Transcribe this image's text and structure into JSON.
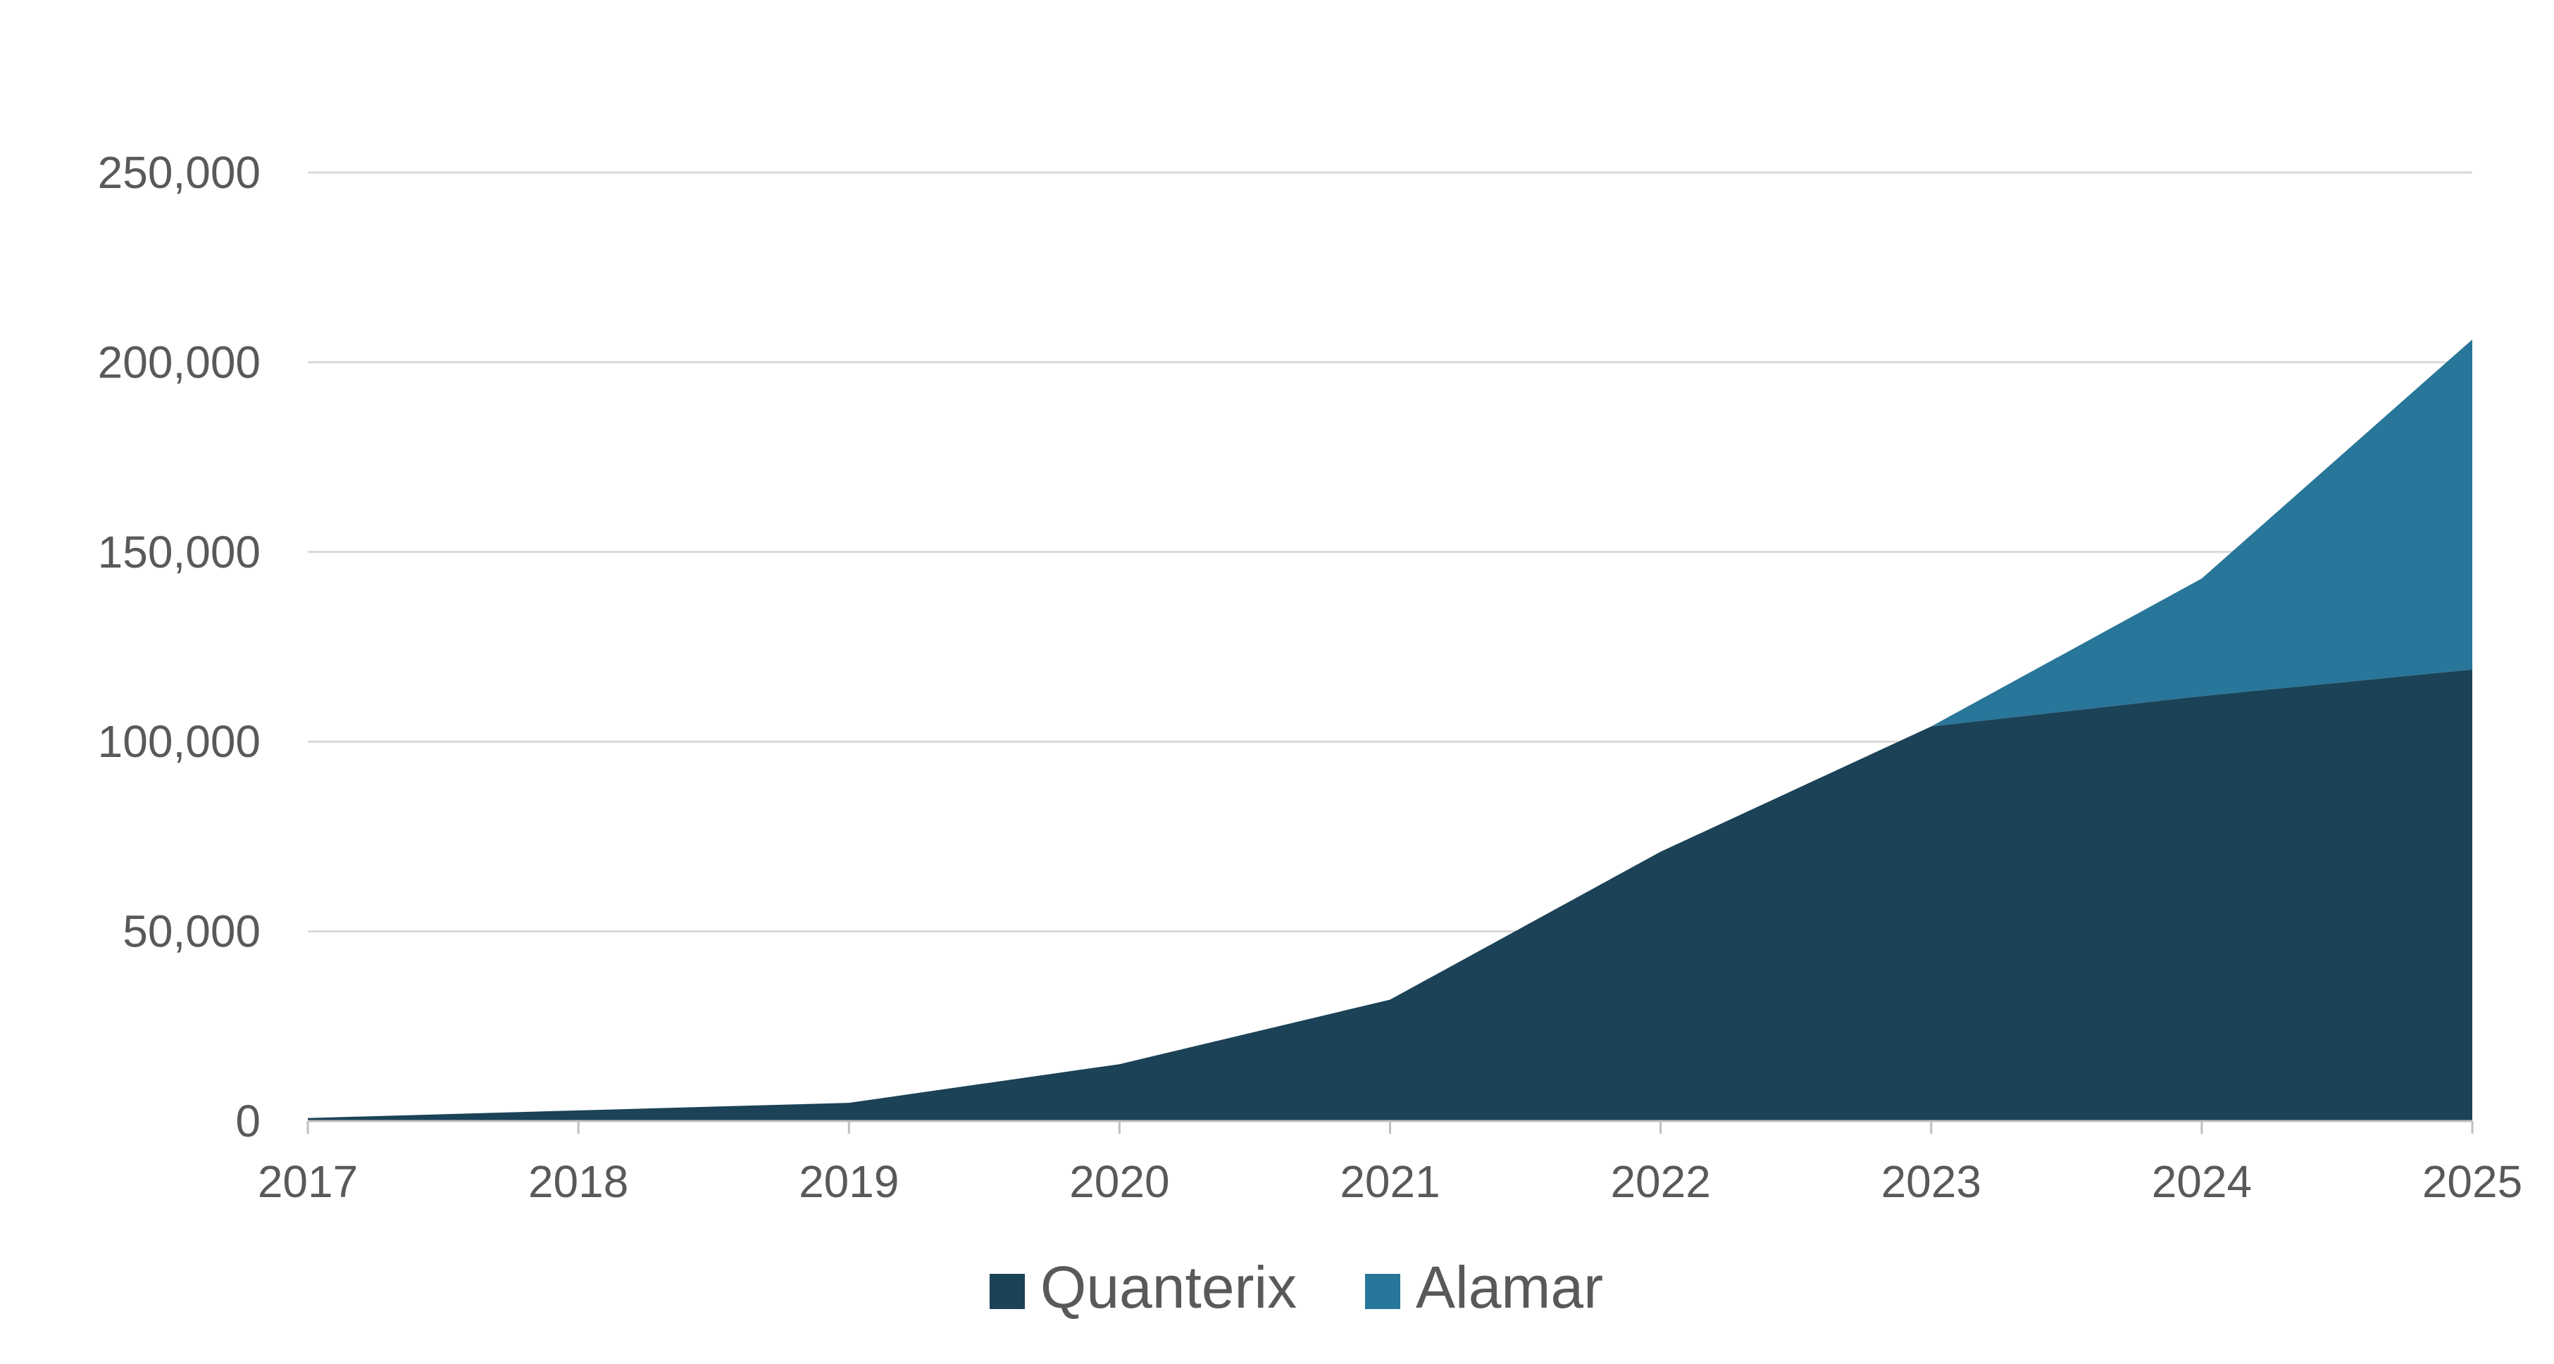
{
  "chart_data": {
    "type": "area",
    "stacked": true,
    "title": "",
    "xlabel": "",
    "ylabel": "",
    "x": [
      "2017",
      "2018",
      "2019",
      "2020",
      "2021",
      "2022",
      "2023",
      "2024",
      "2025"
    ],
    "ylim": [
      0,
      250000
    ],
    "yticks": [
      "0",
      "50,000",
      "100,000",
      "150,000",
      "200,000",
      "250,000"
    ],
    "ytick_values": [
      0,
      50000,
      100000,
      150000,
      200000,
      250000
    ],
    "grid": true,
    "legend": "bottom-center",
    "series": [
      {
        "name": "Quanterix",
        "color": "#1b4257",
        "values": [
          800,
          2800,
          4800,
          15000,
          32000,
          71000,
          104000,
          112000,
          119000
        ]
      },
      {
        "name": "Alamar",
        "color": "#287699",
        "values": [
          0,
          0,
          0,
          0,
          0,
          0,
          0,
          31000,
          87000
        ]
      }
    ]
  },
  "colors": {
    "grid": "#d9d9d9",
    "axis": "#bfbfbf",
    "text": "#595959"
  }
}
